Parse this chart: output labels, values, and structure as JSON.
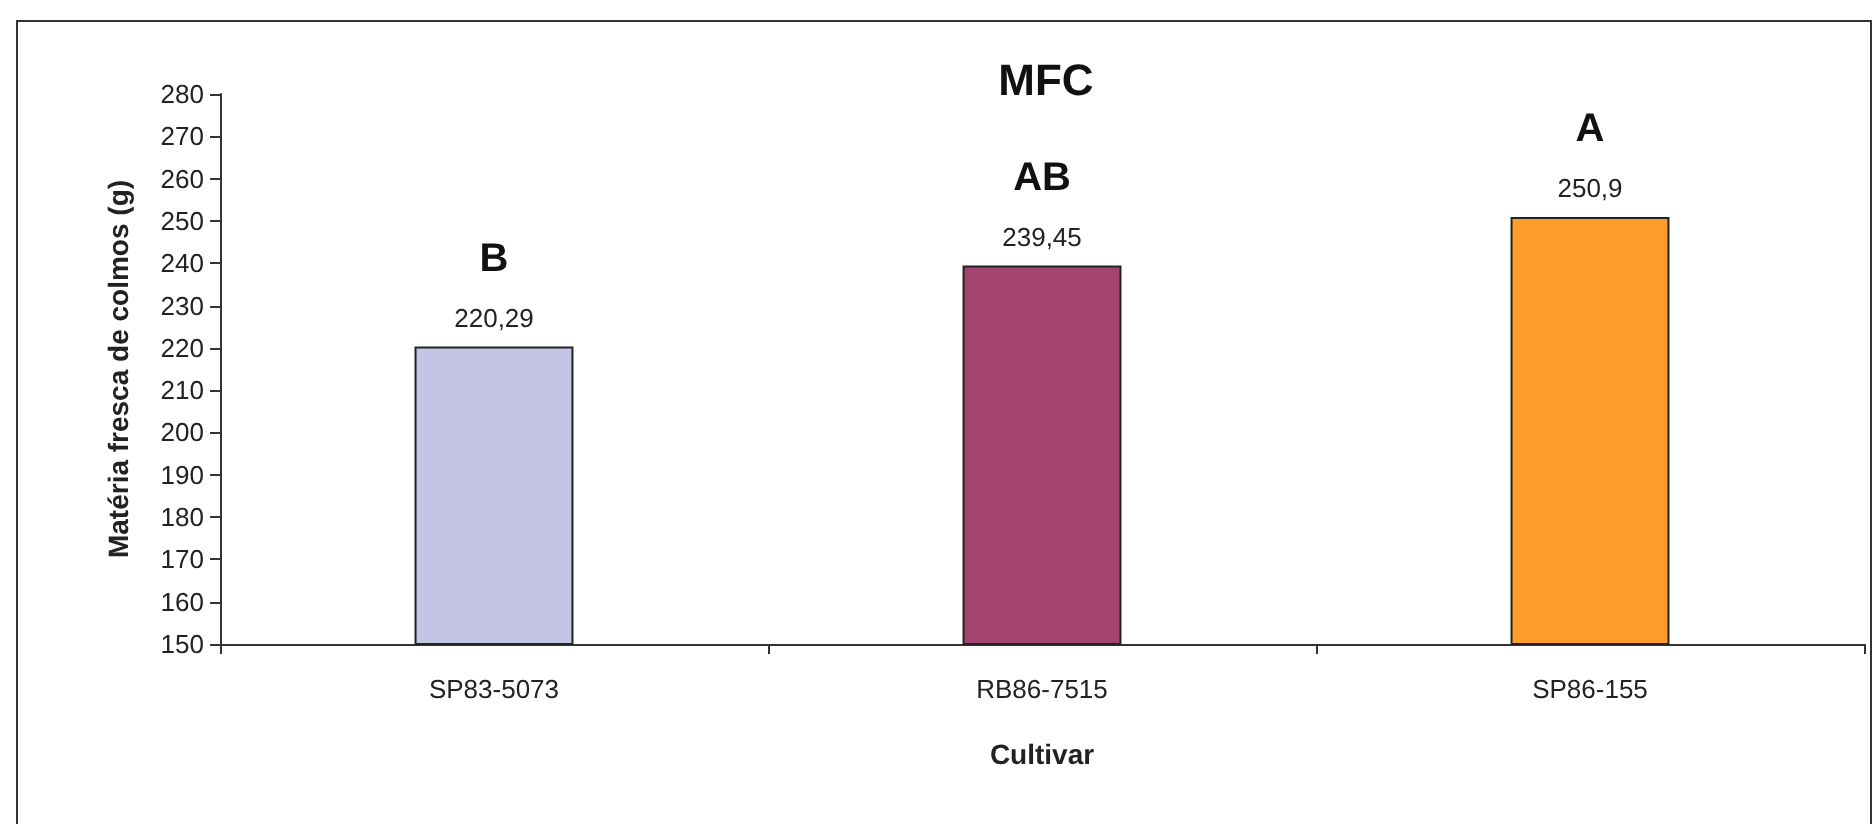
{
  "chart_data": {
    "type": "bar",
    "title": "MFC",
    "xlabel": "Cultivar",
    "ylabel": "Matéria fresca de colmos (g)",
    "categories": [
      "SP83-5073",
      "RB86-7515",
      "SP86-155"
    ],
    "values": [
      220.29,
      239.45,
      250.9
    ],
    "colors": [
      "#c4c4e4",
      "#a3446e",
      "#ff9c2a"
    ],
    "value_labels": [
      "220,29",
      "239,45",
      "250,9"
    ],
    "annotations": [
      {
        "text": "B",
        "x": "SP83-5073",
        "y": 220.29
      },
      {
        "text": "AB",
        "x": "RB86-7515",
        "y": 239.45
      },
      {
        "text": "A",
        "x": "SP86-155",
        "y": 250.9
      }
    ],
    "ylim": [
      150,
      280
    ],
    "yticks": [
      150,
      160,
      170,
      180,
      190,
      200,
      210,
      220,
      230,
      240,
      250,
      260,
      270,
      280
    ],
    "grid": false
  }
}
